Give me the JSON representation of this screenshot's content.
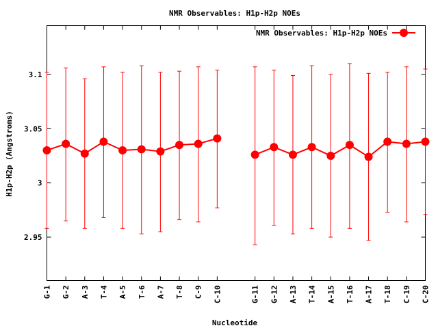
{
  "chart_data": {
    "type": "line",
    "title": "NMR Observables: H1p-H2p NOEs",
    "xlabel": "Nucleotide",
    "ylabel": "H1p-H2p (Angstroms)",
    "ylim": [
      2.91,
      3.145
    ],
    "yticks": [
      "2.95",
      "3",
      "3.05",
      "3.1"
    ],
    "ytick_values": [
      2.95,
      3.0,
      3.05,
      3.1
    ],
    "grid": false,
    "legend_position": "top-right",
    "series_color": "#ff0000",
    "series": [
      {
        "name": "NMR Observables: H1p-H2p NOEs",
        "segments": [
          {
            "categories": [
              "G-1",
              "G-2",
              "A-3",
              "T-4",
              "A-5",
              "T-6",
              "A-7",
              "T-8",
              "C-9",
              "C-10"
            ],
            "x": [
              1,
              2,
              3,
              4,
              5,
              6,
              7,
              8,
              9,
              10
            ],
            "values": [
              3.03,
              3.036,
              3.027,
              3.038,
              3.03,
              3.031,
              3.029,
              3.035,
              3.036,
              3.041
            ],
            "err_low": [
              2.958,
              2.965,
              2.958,
              2.968,
              2.958,
              2.953,
              2.955,
              2.966,
              2.964,
              2.977
            ],
            "err_high": [
              3.102,
              3.106,
              3.096,
              3.107,
              3.102,
              3.108,
              3.102,
              3.103,
              3.107,
              3.104
            ]
          },
          {
            "categories": [
              "G-11",
              "G-12",
              "A-13",
              "T-14",
              "A-15",
              "T-16",
              "A-17",
              "T-18",
              "C-19",
              "C-20"
            ],
            "x": [
              12,
              13,
              14,
              15,
              16,
              17,
              18,
              19,
              20,
              21
            ],
            "values": [
              3.026,
              3.033,
              3.026,
              3.033,
              3.025,
              3.035,
              3.024,
              3.038,
              3.036,
              3.038
            ],
            "err_low": [
              2.943,
              2.961,
              2.953,
              2.958,
              2.95,
              2.958,
              2.947,
              2.973,
              2.964,
              2.971
            ],
            "err_high": [
              3.107,
              3.104,
              3.099,
              3.108,
              3.1,
              3.11,
              3.101,
              3.102,
              3.107,
              3.105
            ]
          }
        ]
      }
    ]
  }
}
